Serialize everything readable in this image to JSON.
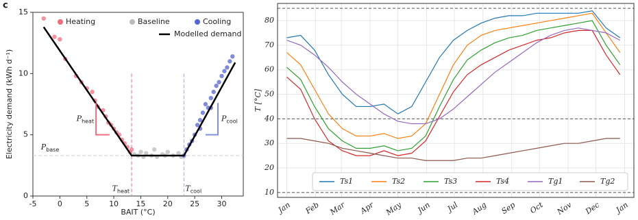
{
  "panel_label": "c",
  "chart_data": [
    {
      "type": "scatter",
      "xlabel": "BAIT (°C)",
      "ylabel": "Electricity demand (kWh d⁻¹)",
      "xlim": [
        -5,
        34
      ],
      "ylim": [
        0,
        15
      ],
      "xticks": [
        -5,
        0,
        5,
        10,
        15,
        20,
        25,
        30
      ],
      "yticks": [
        0,
        5,
        10,
        15
      ],
      "series": [
        {
          "name": "Heating",
          "color": "#f06e80",
          "x": [
            -3,
            -1,
            0,
            1,
            3,
            4,
            5,
            6,
            6.5,
            7,
            8,
            8.5,
            9,
            9.5,
            10,
            10.5,
            11,
            11.5,
            12,
            12.5,
            13,
            13.3
          ],
          "y": [
            14.5,
            13,
            12.8,
            11.2,
            9.8,
            9.3,
            8.8,
            8.5,
            7.8,
            7.3,
            7,
            6.5,
            6,
            5.8,
            5.5,
            5.2,
            5,
            4.6,
            4.3,
            4,
            3.6,
            3.8
          ]
        },
        {
          "name": "Baseline",
          "color": "#bbbbbb",
          "x": [
            13.8,
            14.5,
            15,
            15.5,
            16,
            17,
            17.5,
            18,
            19,
            19.5,
            20,
            21,
            22,
            22.5
          ],
          "y": [
            3.4,
            3.3,
            3.6,
            3.2,
            3.5,
            3.3,
            3.8,
            3.2,
            3.4,
            3.3,
            3.6,
            3.3,
            3.5,
            3.2
          ]
        },
        {
          "name": "Cooling",
          "color": "#5566cc",
          "x": [
            23,
            23.5,
            24,
            24.5,
            25,
            25.5,
            26,
            26,
            26.5,
            27,
            27.5,
            28,
            28,
            28.5,
            29,
            29.5,
            30,
            30.5,
            31,
            31.5,
            32
          ],
          "y": [
            3.3,
            3.8,
            4.2,
            4.5,
            5,
            5.8,
            5.5,
            6.2,
            6.8,
            7.5,
            7.2,
            8,
            7.2,
            8.5,
            9,
            9.3,
            9.8,
            10.2,
            10.5,
            11,
            11.4
          ]
        }
      ],
      "model": {
        "name": "Modelled demand",
        "color": "#000000",
        "x": [
          -3,
          13.3,
          23,
          32.5
        ],
        "y": [
          13.8,
          3.3,
          3.3,
          10.9
        ]
      },
      "annotations": {
        "p_heat": {
          "symbol": "P",
          "sub": "heat",
          "color": "#f06e80",
          "x": [
            6.7,
            6.7,
            9.2
          ],
          "y": [
            7.6,
            5,
            5
          ]
        },
        "p_cool": {
          "symbol": "P",
          "sub": "cool",
          "color": "#8090e0",
          "x": [
            29.3,
            29.3,
            27
          ],
          "y": [
            7.6,
            5,
            5
          ]
        },
        "p_base": {
          "symbol": "P",
          "sub": "base",
          "value": 3.3
        },
        "t_heat": {
          "symbol": "T",
          "sub": "heat",
          "value": 13.3,
          "color": "#f06e80"
        },
        "t_cool": {
          "symbol": "T",
          "sub": "cool",
          "value": 23,
          "color": "#a9a0e0"
        }
      }
    },
    {
      "type": "line",
      "ylabel": "T [°C]",
      "x": [
        0,
        15,
        30,
        45,
        60,
        75,
        90,
        105,
        120,
        135,
        150,
        165,
        180,
        195,
        210,
        225,
        240,
        255,
        270,
        285,
        300,
        315,
        330,
        345,
        360
      ],
      "xlim": [
        -10,
        375
      ],
      "ylim": [
        8,
        87
      ],
      "xticks": [
        {
          "value": 0,
          "label": "Jan"
        },
        {
          "value": 31,
          "label": "Feb"
        },
        {
          "value": 59,
          "label": "Mar"
        },
        {
          "value": 90,
          "label": "Apr"
        },
        {
          "value": 120,
          "label": "May"
        },
        {
          "value": 151,
          "label": "Jun"
        },
        {
          "value": 181,
          "label": "Jul"
        },
        {
          "value": 212,
          "label": "Aug"
        },
        {
          "value": 243,
          "label": "Sep"
        },
        {
          "value": 273,
          "label": "Oct"
        },
        {
          "value": 304,
          "label": "Nov"
        },
        {
          "value": 334,
          "label": "Dec"
        },
        {
          "value": 365,
          "label": "Jan"
        }
      ],
      "yticks": [
        10,
        20,
        30,
        40,
        50,
        60,
        70,
        80
      ],
      "hlines": [
        10,
        40,
        85
      ],
      "grid": true,
      "series": [
        {
          "name": "Ts1",
          "color": "#1f77b4",
          "values": [
            73,
            74,
            68,
            58,
            50,
            45,
            45,
            46,
            42,
            45,
            55,
            65,
            72,
            76,
            79,
            81,
            82,
            82,
            83,
            83,
            83,
            83,
            84,
            77,
            73
          ]
        },
        {
          "name": "Ts2",
          "color": "#ff7f0e",
          "values": [
            67,
            62,
            52,
            42,
            36,
            33,
            33,
            34,
            32,
            33,
            38,
            50,
            62,
            70,
            74,
            76,
            77,
            78,
            79,
            80,
            81,
            82,
            83,
            75,
            67
          ]
        },
        {
          "name": "Ts3",
          "color": "#2ca02c",
          "values": [
            61,
            56,
            45,
            36,
            31,
            28,
            28,
            29,
            27,
            28,
            33,
            45,
            56,
            64,
            68,
            71,
            73,
            74,
            76,
            77,
            78,
            79,
            80,
            70,
            62
          ]
        },
        {
          "name": "Ts4",
          "color": "#d62728",
          "values": [
            57,
            52,
            40,
            31,
            27,
            25,
            25,
            27,
            25,
            26,
            31,
            41,
            51,
            58,
            62,
            65,
            68,
            70,
            72,
            73,
            75,
            76,
            76,
            66,
            58
          ]
        },
        {
          "name": "Tg1",
          "color": "#9467bd",
          "values": [
            72,
            70,
            66,
            61,
            55,
            50,
            46,
            42,
            39,
            38,
            38,
            40,
            44,
            49,
            54,
            59,
            63,
            67,
            71,
            74,
            76,
            77,
            76,
            75,
            72
          ]
        },
        {
          "name": "Tg2",
          "color": "#8c564b",
          "values": [
            32,
            32,
            31,
            30,
            28,
            27,
            26,
            25,
            24,
            24,
            23,
            23,
            23,
            24,
            24,
            25,
            26,
            27,
            28,
            29,
            30,
            30,
            31,
            32,
            32
          ]
        }
      ]
    }
  ]
}
